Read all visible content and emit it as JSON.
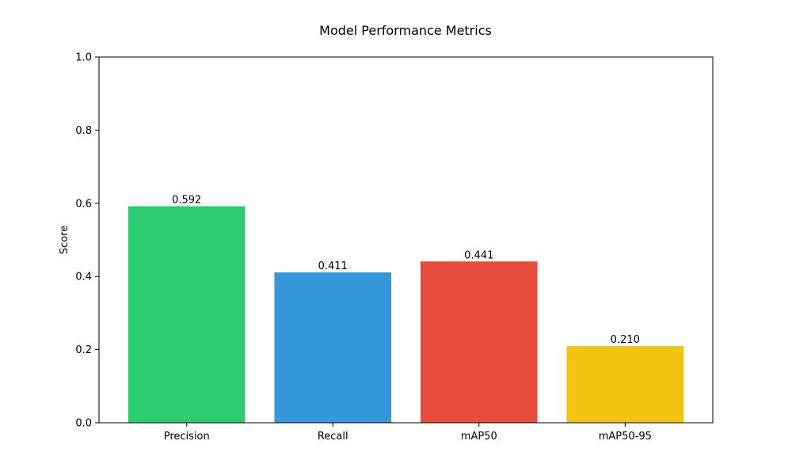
{
  "chart_data": {
    "type": "bar",
    "title": "Model Performance Metrics",
    "xlabel": "",
    "ylabel": "Score",
    "categories": [
      "Precision",
      "Recall",
      "mAP50",
      "mAP50-95"
    ],
    "values": [
      0.592,
      0.411,
      0.441,
      0.21
    ],
    "value_labels": [
      "0.592",
      "0.411",
      "0.441",
      "0.210"
    ],
    "colors": [
      "#2ecc71",
      "#3498db",
      "#e74c3c",
      "#f1c40f"
    ],
    "ylim": [
      0,
      1.0
    ],
    "yticks": [
      0.0,
      0.2,
      0.4,
      0.6,
      0.8,
      1.0
    ],
    "ytick_labels": [
      "0.0",
      "0.2",
      "0.4",
      "0.6",
      "0.8",
      "1.0"
    ],
    "grid": false,
    "legend": "none"
  }
}
